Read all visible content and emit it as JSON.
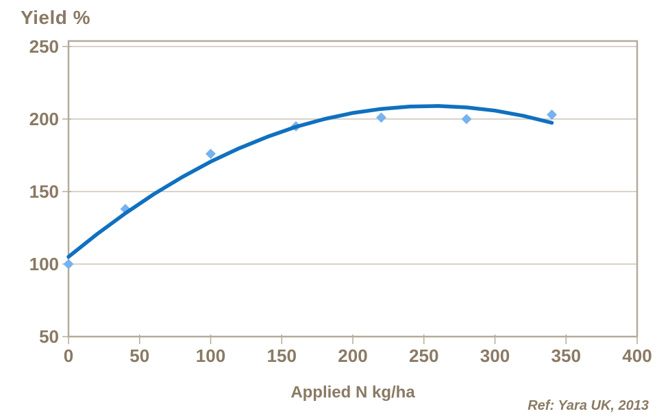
{
  "chart_data": {
    "type": "scatter",
    "title": "Yield %",
    "xlabel": "Applied N kg/ha",
    "reference": "Ref: Yara UK, 2013",
    "xlim": [
      0,
      400
    ],
    "ylim": [
      50,
      250
    ],
    "x_ticks": [
      0,
      50,
      100,
      150,
      200,
      250,
      300,
      350,
      400
    ],
    "y_ticks": [
      50,
      100,
      150,
      200,
      250
    ],
    "grid": "horizontal-only",
    "legend": "none",
    "marker_shape": "diamond",
    "points": {
      "x": [
        0,
        40,
        100,
        160,
        220,
        280,
        340
      ],
      "y": [
        100,
        138,
        176,
        195,
        201,
        200,
        203
      ]
    },
    "fit_curve": {
      "x": [
        0,
        20,
        40,
        60,
        80,
        100,
        120,
        140,
        160,
        180,
        200,
        220,
        240,
        260,
        280,
        300,
        320,
        340
      ],
      "y": [
        105.0,
        120.6,
        135.0,
        148.2,
        160.0,
        170.6,
        179.8,
        187.8,
        194.6,
        200.0,
        204.2,
        207.0,
        208.6,
        209.0,
        208.0,
        205.8,
        202.2,
        197.4
      ]
    },
    "colors": {
      "curve": "#1070C0",
      "marker": "#76B2EF",
      "text": "#8A7A64",
      "gridline": "#CCC4B6",
      "axis": "#B5AA99",
      "background": "#FFFFFF"
    }
  }
}
